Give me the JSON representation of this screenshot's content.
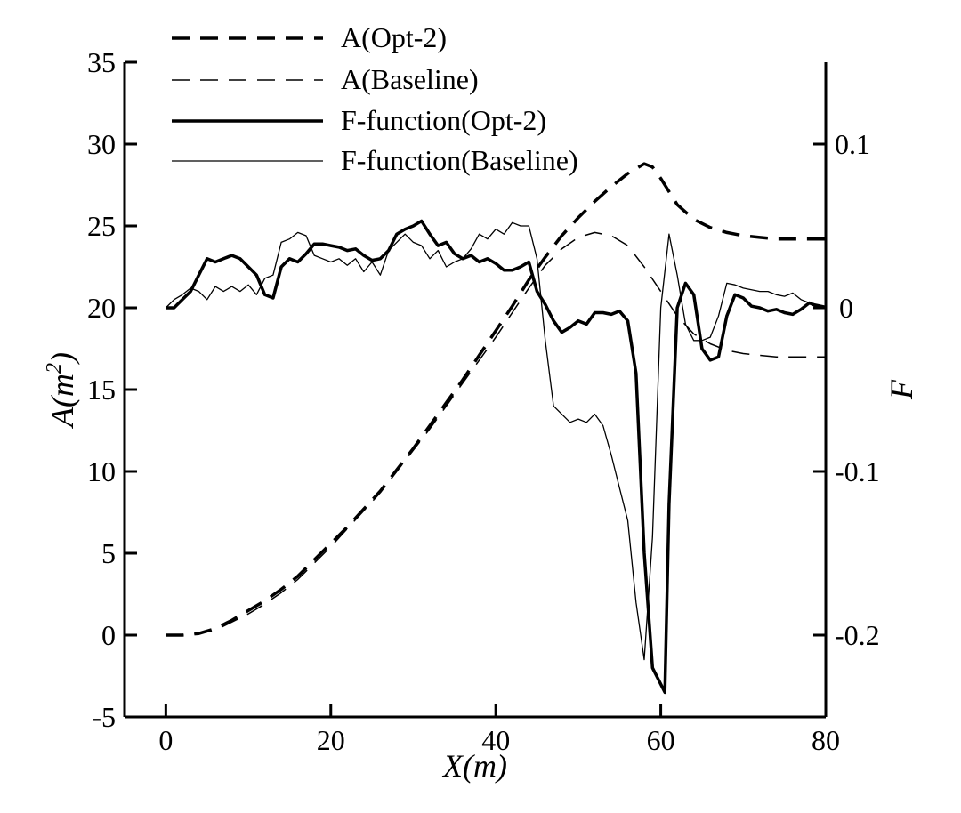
{
  "chart_data": {
    "type": "line",
    "xlabel": "X(m)",
    "ylabel_left": "A(m2)",
    "ylabel_left_base": "A(m",
    "ylabel_left_sup": "2",
    "ylabel_left_close": ")",
    "ylabel_right": "F",
    "xlim": [
      -5,
      80
    ],
    "ylim_left": [
      -5,
      35
    ],
    "ylim_right": [
      -0.25,
      0.15
    ],
    "x_ticks": [
      "0",
      "20",
      "40",
      "60",
      "80"
    ],
    "y_left_ticks": [
      "-5",
      "0",
      "5",
      "10",
      "15",
      "20",
      "25",
      "30",
      "35"
    ],
    "y_right_ticks": [
      "-0.2",
      "-0.1",
      "0",
      "0.1"
    ],
    "legend_position": "top-left",
    "series": [
      {
        "name": "A(Opt-2)",
        "axis": "left",
        "style": "dashed-thick",
        "x": [
          0,
          2,
          4,
          6,
          8,
          10,
          12,
          14,
          16,
          18,
          20,
          22,
          24,
          26,
          28,
          30,
          32,
          34,
          36,
          38,
          40,
          42,
          44,
          46,
          48,
          50,
          52,
          54,
          56,
          58,
          59,
          60,
          62,
          64,
          66,
          68,
          70,
          72,
          74,
          76,
          78,
          80
        ],
        "values": [
          0,
          0,
          0.1,
          0.4,
          0.9,
          1.5,
          2.1,
          2.8,
          3.6,
          4.6,
          5.6,
          6.6,
          7.7,
          8.8,
          10.1,
          11.4,
          12.8,
          14.2,
          15.6,
          17.1,
          18.6,
          20.1,
          21.7,
          23.1,
          24.4,
          25.5,
          26.5,
          27.4,
          28.2,
          28.8,
          28.6,
          27.9,
          26.3,
          25.4,
          24.9,
          24.6,
          24.4,
          24.3,
          24.2,
          24.2,
          24.2,
          24.2
        ]
      },
      {
        "name": "A(Baseline)",
        "axis": "left",
        "style": "dashed-thin",
        "x": [
          0,
          2,
          4,
          6,
          8,
          10,
          12,
          14,
          16,
          18,
          20,
          22,
          24,
          26,
          28,
          30,
          32,
          34,
          36,
          38,
          40,
          42,
          44,
          46,
          48,
          50,
          52,
          54,
          56,
          58,
          60,
          62,
          64,
          66,
          68,
          70,
          72,
          74,
          76,
          78,
          80
        ],
        "values": [
          0,
          0,
          0.1,
          0.3,
          0.8,
          1.3,
          1.9,
          2.6,
          3.4,
          4.4,
          5.4,
          6.5,
          7.6,
          8.7,
          10,
          11.3,
          12.6,
          14,
          15.4,
          16.8,
          18.2,
          19.7,
          21.2,
          22.6,
          23.6,
          24.3,
          24.6,
          24.4,
          23.8,
          22.5,
          21,
          19.5,
          18.4,
          17.8,
          17.4,
          17.2,
          17.1,
          17,
          17,
          17,
          17
        ]
      },
      {
        "name": "F-function(Opt-2)",
        "axis": "right",
        "style": "solid-thick",
        "x": [
          0,
          1,
          2,
          3,
          4,
          5,
          6,
          7,
          8,
          9,
          10,
          11,
          12,
          13,
          14,
          15,
          16,
          17,
          18,
          19,
          20,
          21,
          22,
          23,
          24,
          25,
          26,
          27,
          28,
          29,
          30,
          31,
          32,
          33,
          34,
          35,
          36,
          37,
          38,
          39,
          40,
          41,
          42,
          43,
          44,
          45,
          46,
          47,
          48,
          49,
          50,
          51,
          52,
          53,
          54,
          55,
          56,
          57,
          58,
          59,
          60,
          60.5,
          61,
          62,
          63,
          64,
          65,
          66,
          67,
          68,
          69,
          70,
          71,
          72,
          73,
          74,
          75,
          76,
          77,
          78,
          79,
          80
        ],
        "values": [
          0,
          0,
          0.005,
          0.01,
          0.02,
          0.03,
          0.028,
          0.03,
          0.032,
          0.03,
          0.025,
          0.02,
          0.008,
          0.006,
          0.025,
          0.03,
          0.028,
          0.033,
          0.039,
          0.039,
          0.038,
          0.037,
          0.035,
          0.036,
          0.032,
          0.029,
          0.03,
          0.035,
          0.045,
          0.048,
          0.05,
          0.053,
          0.045,
          0.038,
          0.04,
          0.033,
          0.03,
          0.032,
          0.028,
          0.03,
          0.027,
          0.023,
          0.023,
          0.025,
          0.028,
          0.01,
          0.002,
          -0.008,
          -0.015,
          -0.012,
          -0.008,
          -0.01,
          -0.003,
          -0.003,
          -0.004,
          -0.002,
          -0.008,
          -0.04,
          -0.15,
          -0.22,
          -0.23,
          -0.235,
          -0.12,
          0,
          0.015,
          0.008,
          -0.025,
          -0.032,
          -0.03,
          -0.005,
          0.008,
          0.006,
          0.001,
          0,
          -0.002,
          -0.001,
          -0.003,
          -0.004,
          -0.001,
          0.003,
          0.001,
          0
        ]
      },
      {
        "name": "F-function(Baseline)",
        "axis": "right",
        "style": "solid-thin",
        "x": [
          0,
          1,
          2,
          3,
          4,
          5,
          6,
          7,
          8,
          9,
          10,
          11,
          12,
          13,
          14,
          15,
          16,
          17,
          18,
          19,
          20,
          21,
          22,
          23,
          24,
          25,
          26,
          27,
          28,
          29,
          30,
          31,
          32,
          33,
          34,
          35,
          36,
          37,
          38,
          39,
          40,
          41,
          42,
          43,
          44,
          45,
          46,
          47,
          48,
          49,
          50,
          51,
          52,
          53,
          54,
          55,
          56,
          57,
          58,
          59,
          60,
          61,
          62,
          63,
          64,
          65,
          66,
          67,
          68,
          69,
          70,
          71,
          72,
          73,
          74,
          75,
          76,
          77,
          78,
          79,
          80
        ],
        "values": [
          0,
          0.005,
          0.008,
          0.012,
          0.01,
          0.005,
          0.013,
          0.01,
          0.013,
          0.01,
          0.014,
          0.008,
          0.018,
          0.02,
          0.04,
          0.042,
          0.046,
          0.044,
          0.032,
          0.03,
          0.028,
          0.03,
          0.026,
          0.03,
          0.022,
          0.028,
          0.02,
          0.035,
          0.04,
          0.045,
          0.04,
          0.038,
          0.03,
          0.035,
          0.025,
          0.028,
          0.03,
          0.036,
          0.045,
          0.042,
          0.048,
          0.045,
          0.052,
          0.05,
          0.05,
          0.03,
          -0.02,
          -0.06,
          -0.065,
          -0.07,
          -0.068,
          -0.07,
          -0.065,
          -0.072,
          -0.09,
          -0.11,
          -0.13,
          -0.18,
          -0.215,
          -0.14,
          0,
          0.045,
          0.02,
          -0.01,
          -0.02,
          -0.02,
          -0.018,
          -0.005,
          0.015,
          0.014,
          0.012,
          0.011,
          0.01,
          0.01,
          0.008,
          0.007,
          0.009,
          0.005,
          0.003,
          0.002,
          0.001
        ]
      }
    ]
  }
}
